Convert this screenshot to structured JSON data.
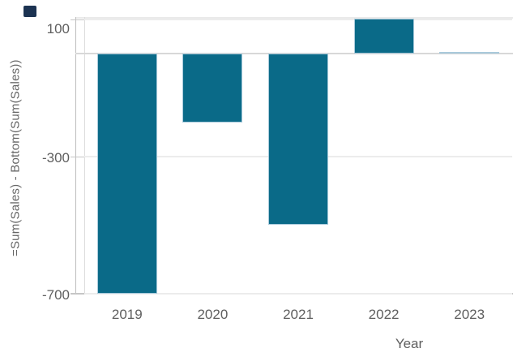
{
  "corner_mark": {
    "color": "#1c3352"
  },
  "chart_data": {
    "type": "bar",
    "categories": [
      "2019",
      "2020",
      "2021",
      "2022",
      "2023"
    ],
    "values": [
      -700,
      -200,
      -500,
      103,
      3
    ],
    "title": "",
    "xlabel": "Year",
    "ylabel": "=Sum(Sales) - Bottom(Sum(Sales))",
    "yticks": [
      {
        "label": "100",
        "value": 100
      },
      {
        "label": "-300",
        "value": -300
      },
      {
        "label": "-700",
        "value": -700
      }
    ],
    "ylim": [
      -700,
      106
    ],
    "bar_color": "#0a6a88",
    "bar_border_color": "#a9cadb",
    "grid": "horizontal",
    "legend": "none",
    "zero_line_emphasized": true
  }
}
